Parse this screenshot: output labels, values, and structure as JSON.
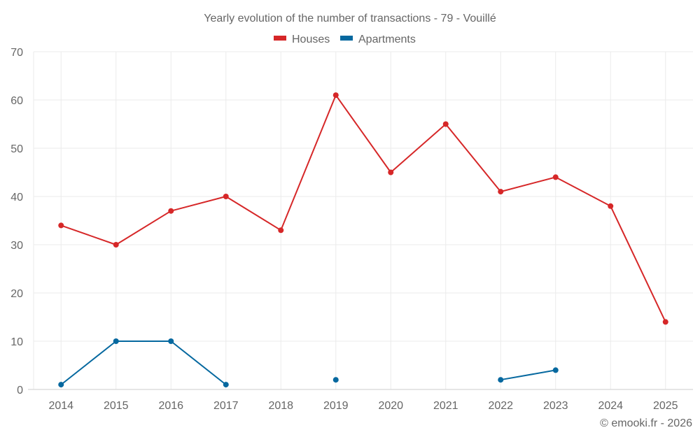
{
  "chart_data": {
    "type": "line",
    "title": "Yearly evolution of the number of transactions - 79 - Vouillé",
    "xlabel": "",
    "ylabel": "",
    "categories": [
      "2014",
      "2015",
      "2016",
      "2017",
      "2018",
      "2019",
      "2020",
      "2021",
      "2022",
      "2023",
      "2024",
      "2025"
    ],
    "ylim": [
      0,
      70
    ],
    "yticks": [
      0,
      10,
      20,
      30,
      40,
      50,
      60,
      70
    ],
    "grid": true,
    "legend_position": "top-center",
    "series": [
      {
        "name": "Houses",
        "color": "#d62728",
        "values": [
          34,
          30,
          37,
          40,
          33,
          61,
          45,
          55,
          41,
          44,
          38,
          14
        ]
      },
      {
        "name": "Apartments",
        "color": "#05689f",
        "values": [
          1,
          10,
          10,
          1,
          null,
          2,
          null,
          null,
          2,
          4,
          null,
          null
        ]
      }
    ],
    "credit": "© emooki.fr - 2026"
  }
}
